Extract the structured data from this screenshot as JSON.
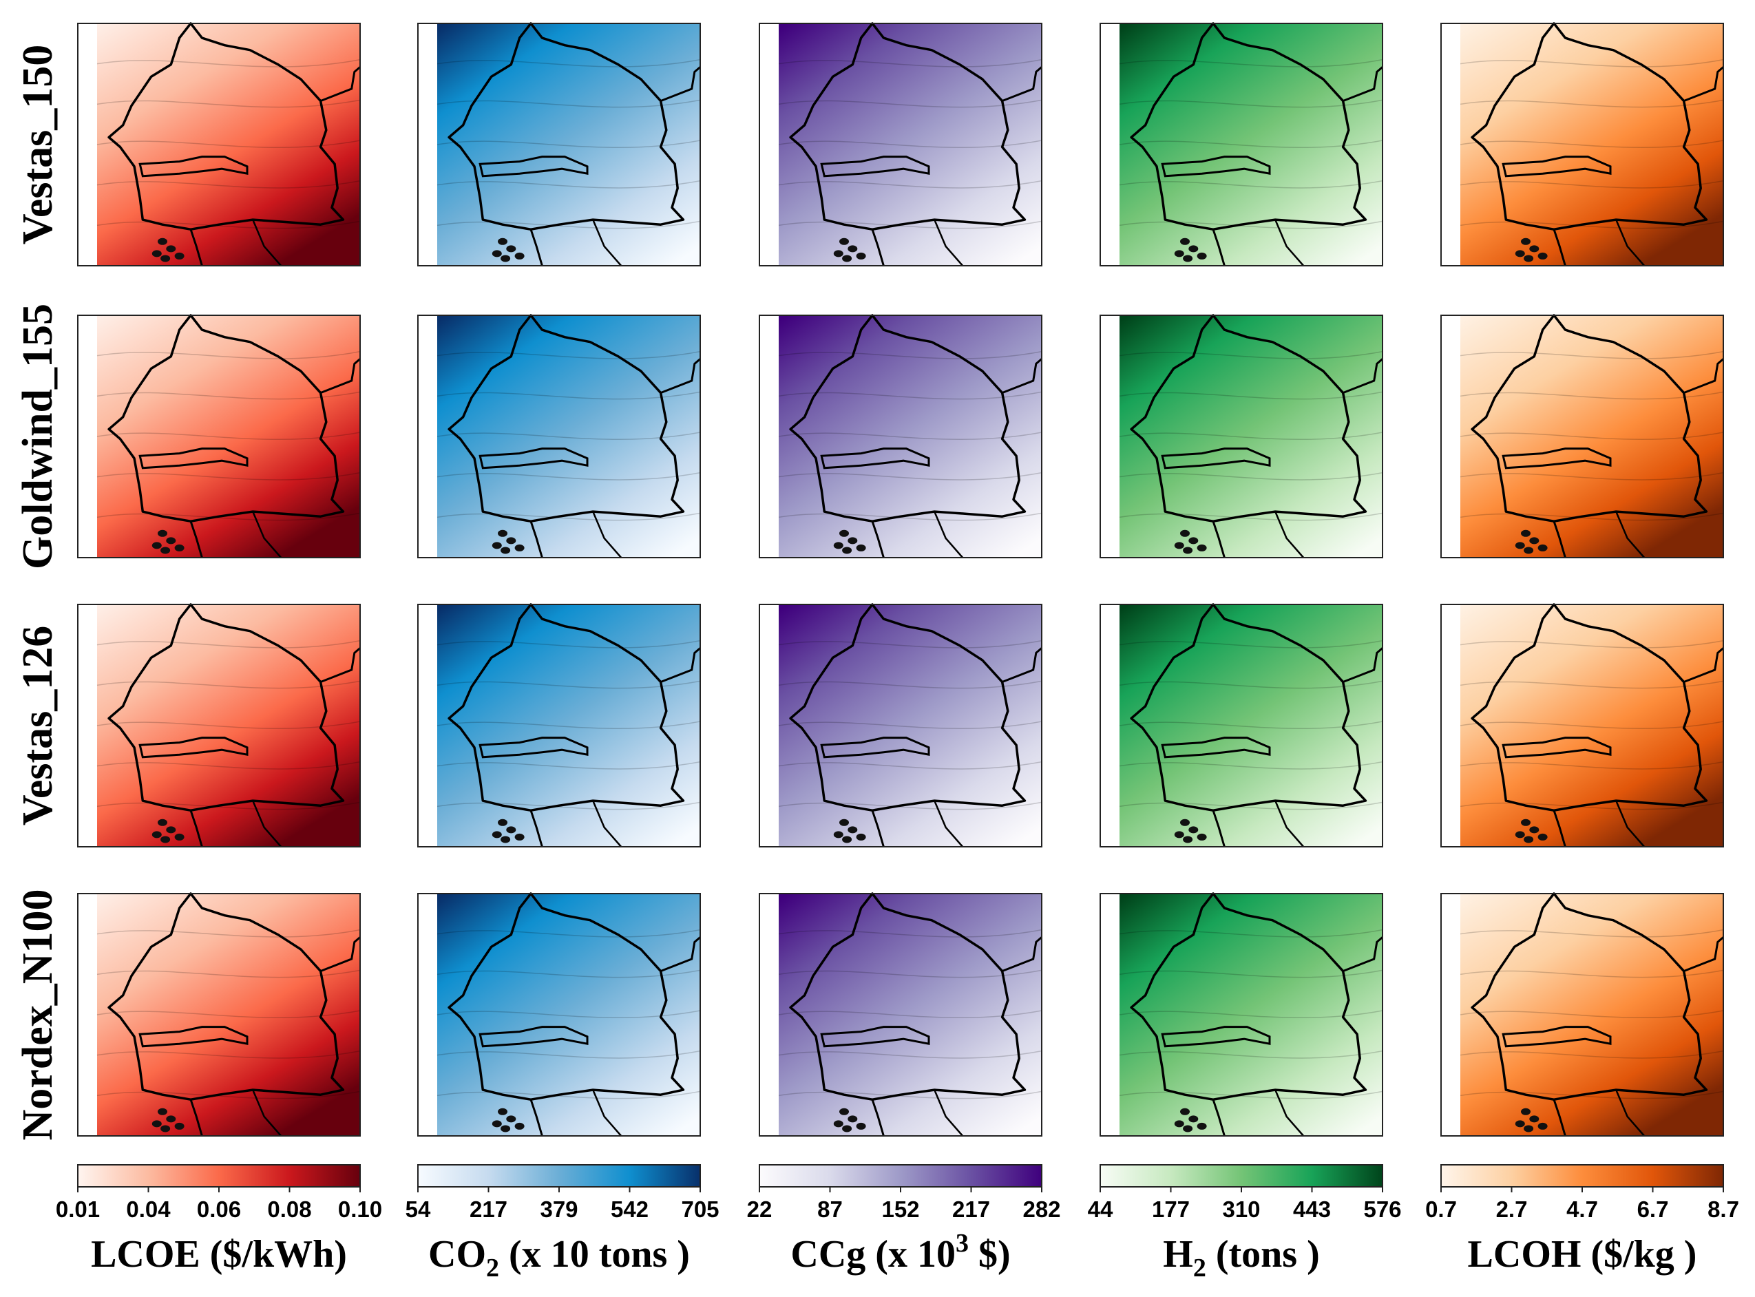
{
  "chart_data": {
    "type": "heatmap",
    "description_grid": "4 turbine rows x 5 variable columns of filled-contour maps",
    "rows": [
      "Vestas_150",
      "Goldwind_155",
      "Vestas_126",
      "Nordex_N100"
    ],
    "columns": [
      {
        "key": "lcoe",
        "label_main": "LCOE ($/kWh)",
        "label_sub": "",
        "label_tail": "",
        "colormap": [
          "#fff5f0",
          "#fcbba1",
          "#fb6a4a",
          "#cb181d",
          "#67000d"
        ],
        "ticks": [
          "0.01",
          "0.04",
          "0.06",
          "0.08",
          "0.10"
        ],
        "range": [
          0.01,
          0.1
        ]
      },
      {
        "key": "co2",
        "label_main": "CO",
        "label_sub": "2",
        "label_tail": " (x 10 tons )",
        "colormap": [
          "#f7fbff",
          "#c6dbef",
          "#6baed6",
          "#0f8fcf",
          "#08306b"
        ],
        "ticks": [
          "54",
          "217",
          "379",
          "542",
          "705"
        ],
        "range": [
          54,
          705
        ]
      },
      {
        "key": "ccg",
        "label_main": "CCg (x 10",
        "label_sub": "3",
        "label_tail": " $)",
        "colormap": [
          "#fcfbfd",
          "#dadaeb",
          "#9e9ac8",
          "#6a51a3",
          "#3f007d"
        ],
        "ticks": [
          "22",
          "87",
          "152",
          "217",
          "282"
        ],
        "range": [
          22,
          282
        ]
      },
      {
        "key": "h2",
        "label_main": "H",
        "label_sub": "2",
        "label_tail": " (tons )",
        "colormap": [
          "#f7fcf5",
          "#c7e9c0",
          "#74c476",
          "#18a358",
          "#00441b"
        ],
        "ticks": [
          "44",
          "177",
          "310",
          "443",
          "576"
        ],
        "range": [
          44,
          576
        ]
      },
      {
        "key": "lcoh",
        "label_main": "LCOH ($/kg )",
        "label_sub": "",
        "label_tail": "",
        "colormap": [
          "#fff5eb",
          "#fdd0a2",
          "#fd8d3c",
          "#e1560a",
          "#7f2704"
        ],
        "ticks": [
          "0.7",
          "2.7",
          "4.7",
          "6.7",
          "8.7"
        ],
        "range": [
          0.7,
          8.7
        ]
      }
    ]
  }
}
